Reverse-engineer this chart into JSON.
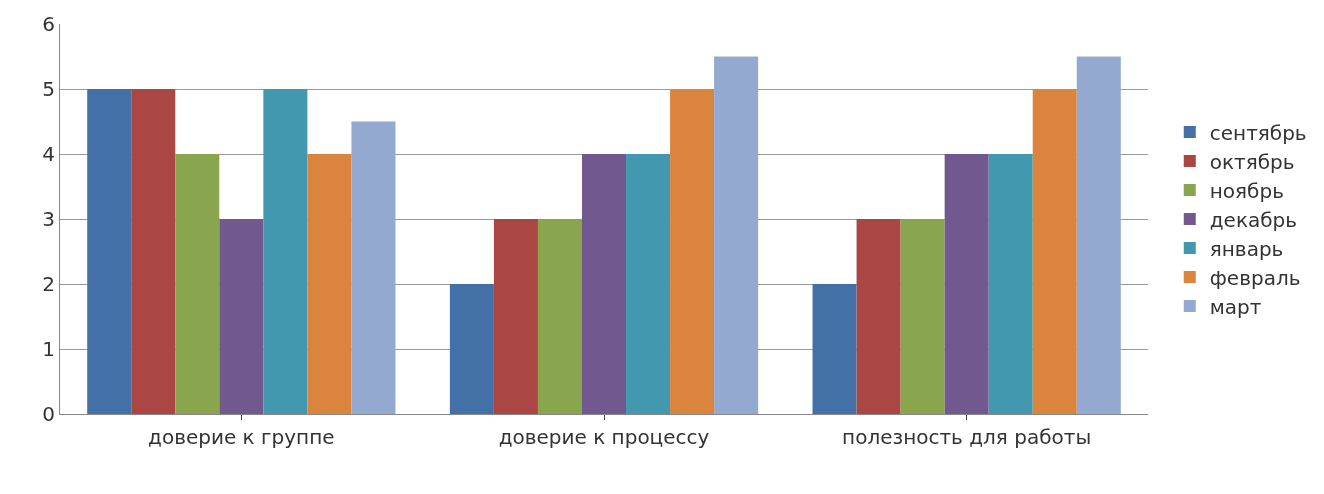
{
  "chart_data": {
    "type": "bar",
    "categories": [
      "доверие к группе",
      "доверие к процессу",
      "полезность для работы"
    ],
    "series": [
      {
        "name": "сентябрь",
        "color": "#4470a8",
        "values": [
          5,
          2,
          2
        ]
      },
      {
        "name": "октябрь",
        "color": "#aa4644",
        "values": [
          5,
          3,
          3
        ]
      },
      {
        "name": "ноябрь",
        "color": "#89a54e",
        "values": [
          4,
          3,
          3
        ]
      },
      {
        "name": "декабрь",
        "color": "#71588f",
        "values": [
          3,
          4,
          4
        ]
      },
      {
        "name": "январь",
        "color": "#4198af",
        "values": [
          5,
          4,
          4
        ]
      },
      {
        "name": "февраль",
        "color": "#db843d",
        "values": [
          4,
          5,
          5
        ]
      },
      {
        "name": "март",
        "color": "#93a9cf",
        "values": [
          4.5,
          5.5,
          5.5
        ]
      }
    ],
    "ylim": [
      0,
      6
    ],
    "yticks": [
      0,
      1,
      2,
      3,
      4,
      5,
      6
    ],
    "grid": "y",
    "legend": "right"
  }
}
